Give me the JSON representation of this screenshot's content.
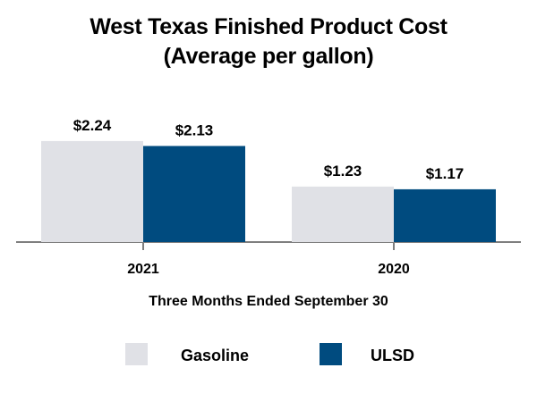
{
  "chart_data": {
    "type": "bar",
    "title_lines": [
      "West Texas Finished Product Cost",
      "(Average per gallon)"
    ],
    "categories": [
      "2021",
      "2020"
    ],
    "series": [
      {
        "name": "Gasoline",
        "values": [
          2.24,
          1.23
        ],
        "labels": [
          "$2.24",
          "$1.23"
        ],
        "color": "#e0e1e6"
      },
      {
        "name": "ULSD",
        "values": [
          2.13,
          1.17
        ],
        "labels": [
          "$2.13",
          "$1.17"
        ],
        "color": "#004b7f"
      }
    ],
    "xlabel": "Three Months Ended September 30",
    "ylim": [
      0,
      2.5
    ],
    "legend": "bottom",
    "grid": false
  }
}
